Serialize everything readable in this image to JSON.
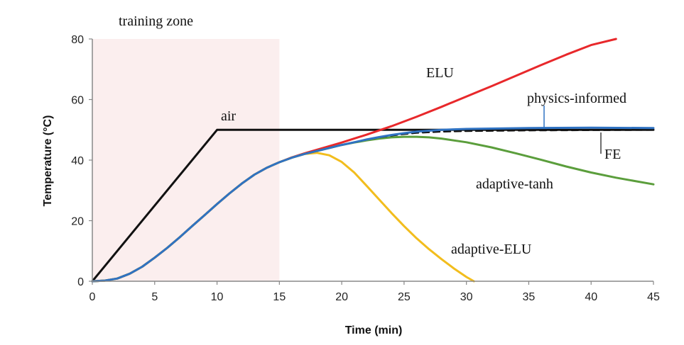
{
  "chart_data": {
    "type": "line",
    "title": "",
    "xlabel": "Time (min)",
    "ylabel": "Temperature (°C)",
    "xlim": [
      0,
      45
    ],
    "ylim": [
      0,
      80
    ],
    "xticks": [
      0,
      5,
      10,
      15,
      20,
      25,
      30,
      35,
      40,
      45
    ],
    "yticks": [
      0,
      20,
      40,
      60,
      80
    ],
    "grid": false,
    "shaded_region": {
      "label": "training zone",
      "x": [
        0,
        15
      ],
      "color": "#fbeeee"
    },
    "series": [
      {
        "name": "air",
        "color": "#111111",
        "style": "solid",
        "x": [
          0,
          10,
          45
        ],
        "y": [
          0,
          50,
          50
        ]
      },
      {
        "name": "FE",
        "color": "#111111",
        "style": "dashed",
        "x": [
          0,
          1,
          2,
          3,
          4,
          5,
          6,
          7,
          8,
          9,
          10,
          11,
          12,
          13,
          14,
          15,
          16,
          17,
          18,
          19,
          20,
          21,
          22,
          23,
          24,
          25,
          26,
          28,
          30,
          35,
          40,
          45
        ],
        "y": [
          0,
          0.2,
          0.9,
          2.5,
          4.8,
          7.8,
          11.0,
          14.5,
          18.2,
          21.8,
          25.5,
          29.0,
          32.3,
          35.2,
          37.5,
          39.3,
          40.8,
          42.0,
          43.0,
          44.0,
          45.0,
          45.9,
          46.8,
          47.5,
          48.1,
          48.6,
          49.0,
          49.4,
          49.6,
          49.8,
          49.9,
          50.0
        ]
      },
      {
        "name": "ELU",
        "color": "#e8282b",
        "style": "solid",
        "x": [
          0,
          1,
          2,
          3,
          4,
          5,
          6,
          7,
          8,
          9,
          10,
          11,
          12,
          13,
          14,
          15,
          16,
          17,
          18,
          19,
          20,
          21,
          22,
          24,
          26,
          28,
          30,
          32,
          34,
          36,
          38,
          40,
          42
        ],
        "y": [
          0,
          0.2,
          0.9,
          2.5,
          4.8,
          7.8,
          11.0,
          14.5,
          18.2,
          21.8,
          25.5,
          29.0,
          32.3,
          35.2,
          37.5,
          39.3,
          40.9,
          42.2,
          43.4,
          44.6,
          45.8,
          47.1,
          48.4,
          51.2,
          54.3,
          57.6,
          61.0,
          64.4,
          67.9,
          71.4,
          74.8,
          78.0,
          80.0
        ]
      },
      {
        "name": "physics-informed",
        "color": "#2f72c2",
        "style": "solid",
        "x": [
          0,
          1,
          2,
          3,
          4,
          5,
          6,
          7,
          8,
          9,
          10,
          11,
          12,
          13,
          14,
          15,
          16,
          17,
          18,
          19,
          20,
          21,
          22,
          23,
          24,
          25,
          26,
          28,
          30,
          35,
          40,
          45
        ],
        "y": [
          0,
          0.2,
          0.9,
          2.5,
          4.8,
          7.8,
          11.0,
          14.5,
          18.2,
          21.8,
          25.5,
          29.0,
          32.3,
          35.2,
          37.5,
          39.3,
          40.8,
          42.0,
          43.0,
          44.0,
          45.0,
          45.9,
          46.8,
          47.6,
          48.3,
          48.9,
          49.4,
          50.0,
          50.3,
          50.6,
          50.7,
          50.6
        ]
      },
      {
        "name": "adaptive-tanh",
        "color": "#5b9e3c",
        "style": "solid",
        "x": [
          0,
          1,
          2,
          3,
          4,
          5,
          6,
          7,
          8,
          9,
          10,
          11,
          12,
          13,
          14,
          15,
          16,
          17,
          18,
          19,
          20,
          21,
          22,
          23,
          24,
          25,
          26,
          27,
          28,
          30,
          32,
          34,
          36,
          38,
          40,
          42,
          45
        ],
        "y": [
          0,
          0.2,
          0.9,
          2.5,
          4.8,
          7.8,
          11.0,
          14.5,
          18.2,
          21.8,
          25.5,
          29.0,
          32.3,
          35.2,
          37.5,
          39.3,
          40.8,
          42.0,
          43.0,
          44.0,
          45.0,
          45.8,
          46.5,
          47.1,
          47.5,
          47.7,
          47.7,
          47.5,
          47.1,
          45.9,
          44.2,
          42.2,
          40.1,
          37.9,
          35.9,
          34.2,
          32.0
        ]
      },
      {
        "name": "adaptive-ELU",
        "color": "#f2bd1d",
        "style": "solid",
        "x": [
          0,
          1,
          2,
          3,
          4,
          5,
          6,
          7,
          8,
          9,
          10,
          11,
          12,
          13,
          14,
          15,
          16,
          17,
          18,
          19,
          20,
          21,
          22,
          23,
          24,
          25,
          26,
          27,
          28,
          29,
          30,
          30.6
        ],
        "y": [
          0,
          0.2,
          0.9,
          2.5,
          4.8,
          7.8,
          11.0,
          14.5,
          18.2,
          21.8,
          25.5,
          29.0,
          32.3,
          35.2,
          37.5,
          39.3,
          40.8,
          42.0,
          42.4,
          41.6,
          39.4,
          35.9,
          31.5,
          27.0,
          22.5,
          18.2,
          14.2,
          10.6,
          7.3,
          4.2,
          1.4,
          0
        ]
      }
    ],
    "annotations": [
      {
        "text": "training zone"
      },
      {
        "text": "air"
      },
      {
        "text": "ELU"
      },
      {
        "text": "physics-informed"
      },
      {
        "text": "FE"
      },
      {
        "text": "adaptive-tanh"
      },
      {
        "text": "adaptive-ELU"
      }
    ]
  }
}
